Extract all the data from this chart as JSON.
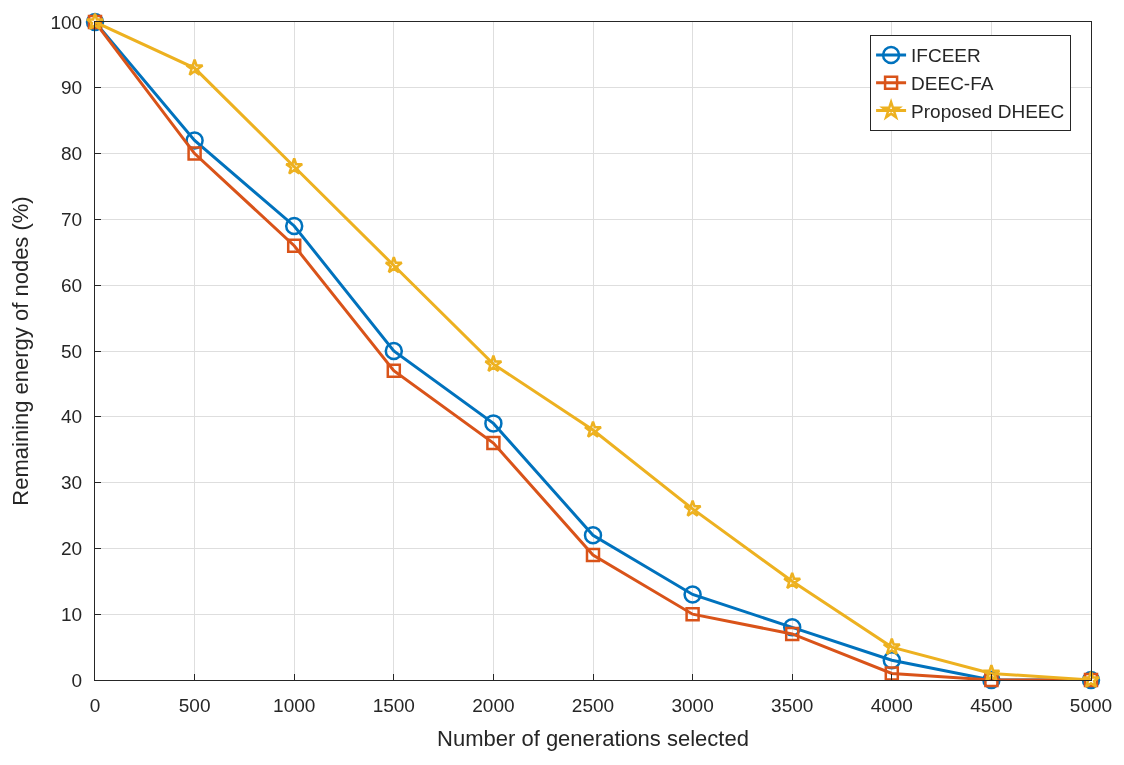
{
  "chart_data": {
    "type": "line",
    "xlabel": "Number of generations selected",
    "ylabel": "Remaining energy of nodes (%)",
    "x": [
      0,
      500,
      1000,
      1500,
      2000,
      2500,
      3000,
      3500,
      4000,
      4500,
      5000
    ],
    "series": [
      {
        "name": "IFCEER",
        "color": "#0072bd",
        "marker": "circle",
        "values": [
          100,
          82,
          69,
          50,
          39,
          22,
          13,
          8,
          3,
          0,
          0
        ]
      },
      {
        "name": "DEEC-FA",
        "color": "#d95319",
        "marker": "square",
        "values": [
          100,
          80,
          66,
          47,
          36,
          19,
          10,
          7,
          1,
          0,
          0
        ]
      },
      {
        "name": "Proposed DHEEC",
        "color": "#edb120",
        "marker": "star",
        "values": [
          100,
          93,
          78,
          63,
          48,
          38,
          26,
          15,
          5,
          1,
          0
        ]
      }
    ],
    "xlim": [
      0,
      5000
    ],
    "xticks": [
      0,
      500,
      1000,
      1500,
      2000,
      2500,
      3000,
      3500,
      4000,
      4500,
      5000
    ],
    "ylim": [
      0,
      100
    ],
    "yticks": [
      0,
      10,
      20,
      30,
      40,
      50,
      60,
      70,
      80,
      90,
      100
    ],
    "grid": true,
    "legend": "top right",
    "line_style": "solid"
  }
}
